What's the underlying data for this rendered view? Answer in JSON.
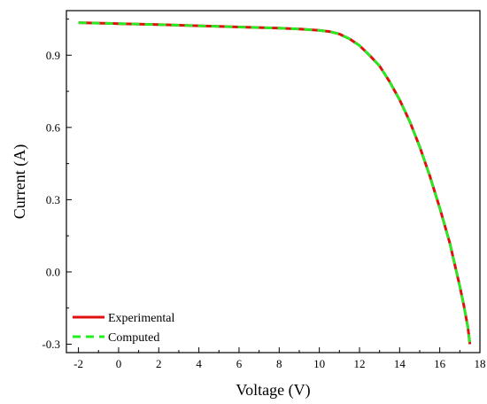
{
  "chart_data": {
    "type": "line",
    "title": "",
    "xlabel": "Voltage (V)",
    "ylabel": "Current (A)",
    "xlim": [
      -2.6,
      18
    ],
    "ylim": [
      -0.335,
      1.085
    ],
    "x_ticks": [
      -2,
      0,
      2,
      4,
      6,
      8,
      10,
      12,
      14,
      16,
      18
    ],
    "x_tick_labels": [
      "-2",
      "0",
      "2",
      "4",
      "6",
      "8",
      "10",
      "12",
      "14",
      "16",
      "18"
    ],
    "y_ticks": [
      -0.3,
      0.0,
      0.3,
      0.6,
      0.9
    ],
    "y_tick_labels": [
      "-0.3",
      "0.0",
      "0.3",
      "0.6",
      "0.9"
    ],
    "grid": false,
    "legend_position": "bottom-left",
    "series": [
      {
        "name": "Experimental",
        "color": "#e01010",
        "dash": "solid",
        "x": [
          -2,
          0,
          2,
          4,
          6,
          8,
          9,
          10,
          10.5,
          11,
          11.5,
          12,
          12.5,
          13,
          13.5,
          14,
          14.5,
          15,
          15.5,
          16,
          16.5,
          17,
          17.2,
          17.4,
          17.5
        ],
        "y": [
          1.035,
          1.031,
          1.027,
          1.022,
          1.017,
          1.012,
          1.009,
          1.003,
          0.998,
          0.988,
          0.968,
          0.94,
          0.9,
          0.855,
          0.79,
          0.715,
          0.625,
          0.52,
          0.4,
          0.265,
          0.12,
          -0.06,
          -0.14,
          -0.23,
          -0.3
        ]
      },
      {
        "name": "Computed",
        "color": "#22ee22",
        "dash": "dashed",
        "x": [
          -2,
          0,
          2,
          4,
          6,
          8,
          9,
          10,
          10.5,
          11,
          11.5,
          12,
          12.5,
          13,
          13.5,
          14,
          14.5,
          15,
          15.5,
          16,
          16.5,
          17,
          17.2,
          17.4,
          17.5
        ],
        "y": [
          1.035,
          1.031,
          1.027,
          1.022,
          1.017,
          1.012,
          1.009,
          1.003,
          0.998,
          0.988,
          0.968,
          0.94,
          0.9,
          0.855,
          0.79,
          0.715,
          0.625,
          0.52,
          0.4,
          0.265,
          0.12,
          -0.06,
          -0.14,
          -0.23,
          -0.3
        ]
      }
    ]
  }
}
